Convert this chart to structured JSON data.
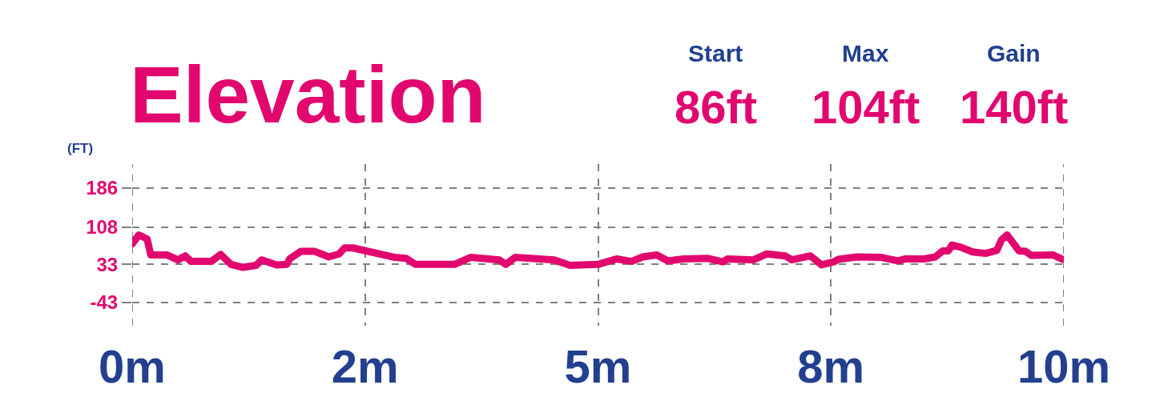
{
  "chart_data": {
    "type": "line",
    "title": "Elevation",
    "ylabel": "(FT)",
    "annotations": [
      "Start",
      "86ft",
      "Max",
      "104ft",
      "Gain",
      "140ft"
    ],
    "x": [
      0,
      0.07,
      0.16,
      0.2,
      0.37,
      0.49,
      0.57,
      0.63,
      0.85,
      0.95,
      1.06,
      1.19,
      1.33,
      1.39,
      1.55,
      1.66,
      1.69,
      1.81,
      1.96,
      2.11,
      2.22,
      2.28,
      2.37,
      2.82,
      2.94,
      3.04,
      3.46,
      3.63,
      3.94,
      4.01,
      4.11,
      4.53,
      4.7,
      5.0,
      5.2,
      5.36,
      5.48,
      5.63,
      5.75,
      5.92,
      6.18,
      6.34,
      6.39,
      6.67,
      6.81,
      7.01,
      7.08,
      7.28,
      7.4,
      7.53,
      7.58,
      7.78,
      8.04,
      8.22,
      8.3,
      8.5,
      8.62,
      8.7,
      8.76,
      8.8,
      8.9,
      9.02,
      9.16,
      9.28,
      9.33,
      9.39,
      9.52,
      9.59,
      9.65,
      9.88,
      9.99
    ],
    "series": [
      {
        "color": "#e2076f",
        "values": [
          74,
          92,
          84,
          52,
          52,
          42,
          50,
          39,
          39,
          53,
          33,
          27,
          31,
          42,
          32,
          33,
          44,
          59,
          59,
          48,
          54,
          66,
          66,
          47,
          45,
          33,
          33,
          47,
          42,
          33,
          47,
          42,
          31,
          33,
          44,
          39,
          48,
          52,
          40,
          44,
          45,
          38,
          44,
          42,
          54,
          50,
          42,
          50,
          32,
          38,
          43,
          48,
          47,
          40,
          44,
          44,
          48,
          60,
          60,
          72,
          67,
          58,
          55,
          61,
          82,
          92,
          60,
          59,
          51,
          52,
          43
        ]
      }
    ],
    "xlim": [
      0,
      10
    ],
    "xticks": [
      {
        "value": 0,
        "label": "0m"
      },
      {
        "value": 2.5,
        "label": "2m"
      },
      {
        "value": 5,
        "label": "5m"
      },
      {
        "value": 7.5,
        "label": "8m"
      },
      {
        "value": 10,
        "label": "10m"
      }
    ],
    "ylim": [
      -90,
      234
    ],
    "yticks": [
      -43,
      33,
      108,
      186
    ],
    "grid": true,
    "legend": false,
    "marker": "none",
    "line_style": "solid"
  }
}
